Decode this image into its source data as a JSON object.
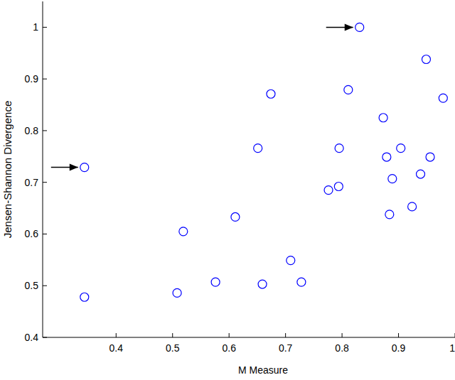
{
  "chart_data": {
    "type": "scatter",
    "x_label": "M Measure",
    "y_label": "Jensen-Shannon Divergence",
    "series": [
      {
        "color": "#0000ff",
        "marker": "circle-open",
        "x": [
          0.831,
          0.344,
          0.344,
          0.949,
          0.979,
          0.674,
          0.811,
          0.873,
          0.651,
          0.795,
          0.904,
          0.879,
          0.956,
          0.889,
          0.939,
          0.924,
          0.884,
          0.776,
          0.794,
          0.611,
          0.519,
          0.709,
          0.508,
          0.576,
          0.659,
          0.728
        ],
        "values": [
          1.0,
          0.729,
          0.478,
          0.938,
          0.863,
          0.871,
          0.879,
          0.825,
          0.766,
          0.766,
          0.766,
          0.749,
          0.749,
          0.707,
          0.716,
          0.653,
          0.638,
          0.685,
          0.692,
          0.633,
          0.605,
          0.549,
          0.486,
          0.507,
          0.503,
          0.507
        ]
      }
    ],
    "xlim": [
      0.27,
      1.0
    ],
    "ylim": [
      0.4,
      1.05
    ],
    "xticks": [
      0.4,
      0.5,
      0.6,
      0.7,
      0.8,
      0.9,
      1
    ],
    "yticks": [
      0.4,
      0.5,
      0.6,
      0.7,
      0.8,
      0.9,
      1
    ],
    "grid": false
  }
}
